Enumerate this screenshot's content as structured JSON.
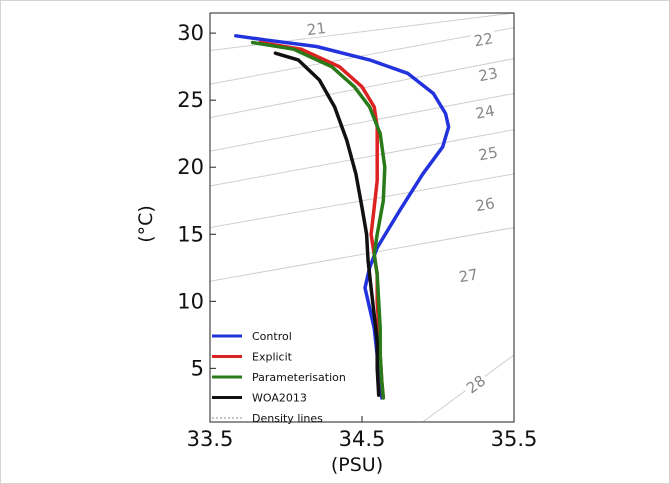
{
  "chart_data": {
    "type": "line",
    "title": "",
    "xlabel": "(PSU)",
    "ylabel": "(°C)",
    "xlim": [
      33.5,
      35.5
    ],
    "ylim": [
      1.0,
      31.5
    ],
    "x_ticks": [
      33.5,
      34.5,
      35.5
    ],
    "x_tick_labels": [
      "33.5",
      "34.5",
      "35.5"
    ],
    "y_ticks": [
      5,
      10,
      15,
      20,
      25,
      30
    ],
    "y_tick_labels": [
      "5",
      "10",
      "15",
      "20",
      "25",
      "30"
    ],
    "grid": false,
    "legend_position": "bottom-left",
    "legend": [
      {
        "name": "Control",
        "color": "#2233dd",
        "style": "solid"
      },
      {
        "name": "Explicit",
        "color": "#dd2222",
        "style": "solid"
      },
      {
        "name": "Parameterisation",
        "color": "#2a7a1a",
        "style": "solid"
      },
      {
        "name": "WOA2013",
        "color": "#111111",
        "style": "solid"
      },
      {
        "name": "Density lines",
        "color": "#888888",
        "style": "dotted"
      }
    ],
    "series": [
      {
        "name": "Control",
        "color": "#2233dd",
        "points": [
          [
            33.67,
            29.8
          ],
          [
            33.86,
            29.5
          ],
          [
            34.2,
            29.0
          ],
          [
            34.55,
            28.0
          ],
          [
            34.8,
            27.0
          ],
          [
            34.97,
            25.5
          ],
          [
            35.05,
            24.0
          ],
          [
            35.07,
            23.0
          ],
          [
            35.03,
            21.5
          ],
          [
            34.9,
            19.5
          ],
          [
            34.75,
            16.8
          ],
          [
            34.6,
            14.0
          ],
          [
            34.55,
            12.5
          ],
          [
            34.52,
            11.0
          ],
          [
            34.54,
            10.0
          ],
          [
            34.58,
            8.0
          ],
          [
            34.6,
            6.0
          ],
          [
            34.62,
            4.0
          ],
          [
            34.63,
            2.8
          ]
        ]
      },
      {
        "name": "Explicit",
        "color": "#dd2222",
        "points": [
          [
            33.83,
            29.3
          ],
          [
            34.1,
            28.8
          ],
          [
            34.35,
            27.5
          ],
          [
            34.5,
            26.0
          ],
          [
            34.58,
            24.5
          ],
          [
            34.6,
            23.0
          ],
          [
            34.6,
            21.0
          ],
          [
            34.6,
            19.0
          ],
          [
            34.58,
            17.0
          ],
          [
            34.56,
            15.0
          ],
          [
            34.58,
            13.5
          ],
          [
            34.6,
            12.0
          ],
          [
            34.6,
            10.0
          ],
          [
            34.61,
            8.0
          ],
          [
            34.62,
            6.0
          ],
          [
            34.63,
            4.0
          ],
          [
            34.64,
            2.8
          ]
        ]
      },
      {
        "name": "Parameterisation",
        "color": "#2a7a1a",
        "points": [
          [
            33.78,
            29.3
          ],
          [
            34.05,
            28.8
          ],
          [
            34.3,
            27.5
          ],
          [
            34.45,
            26.0
          ],
          [
            34.55,
            24.5
          ],
          [
            34.62,
            22.5
          ],
          [
            34.65,
            20.0
          ],
          [
            34.64,
            17.5
          ],
          [
            34.6,
            15.0
          ],
          [
            34.58,
            13.5
          ],
          [
            34.6,
            12.0
          ],
          [
            34.61,
            10.0
          ],
          [
            34.62,
            8.0
          ],
          [
            34.62,
            6.0
          ],
          [
            34.63,
            4.0
          ],
          [
            34.64,
            2.8
          ]
        ]
      },
      {
        "name": "WOA2013",
        "color": "#111111",
        "points": [
          [
            33.93,
            28.5
          ],
          [
            34.08,
            28.0
          ],
          [
            34.22,
            26.5
          ],
          [
            34.32,
            24.5
          ],
          [
            34.4,
            22.0
          ],
          [
            34.46,
            19.5
          ],
          [
            34.5,
            17.0
          ],
          [
            34.53,
            15.0
          ],
          [
            34.54,
            13.0
          ],
          [
            34.56,
            11.0
          ],
          [
            34.58,
            9.0
          ],
          [
            34.6,
            7.0
          ],
          [
            34.6,
            5.0
          ],
          [
            34.61,
            3.0
          ]
        ]
      }
    ],
    "density_lines": [
      {
        "label": "21",
        "x1": 33.5,
        "y1": 28.7,
        "x2": 35.5,
        "y2": 31.5,
        "label_x": 34.2,
        "label_y": 30.3
      },
      {
        "label": "22",
        "x1": 33.5,
        "y1": 26.2,
        "x2": 35.5,
        "y2": 30.4,
        "label_x": 35.3,
        "label_y": 29.5
      },
      {
        "label": "23",
        "x1": 33.5,
        "y1": 23.7,
        "x2": 35.5,
        "y2": 28.1,
        "label_x": 35.33,
        "label_y": 26.9
      },
      {
        "label": "24",
        "x1": 33.5,
        "y1": 21.2,
        "x2": 35.5,
        "y2": 25.5,
        "label_x": 35.31,
        "label_y": 24.1
      },
      {
        "label": "25",
        "x1": 33.5,
        "y1": 18.6,
        "x2": 35.5,
        "y2": 22.8,
        "label_x": 35.33,
        "label_y": 21.0
      },
      {
        "label": "26",
        "x1": 33.5,
        "y1": 15.5,
        "x2": 35.5,
        "y2": 19.5,
        "label_x": 35.31,
        "label_y": 17.2
      },
      {
        "label": "27",
        "x1": 33.5,
        "y1": 11.5,
        "x2": 35.5,
        "y2": 15.5,
        "label_x": 35.2,
        "label_y": 11.9
      },
      {
        "label": "28",
        "x1": 34.9,
        "y1": 1.0,
        "x2": 35.5,
        "y2": 6.0,
        "label_x": 35.25,
        "label_y": 3.8
      }
    ]
  }
}
